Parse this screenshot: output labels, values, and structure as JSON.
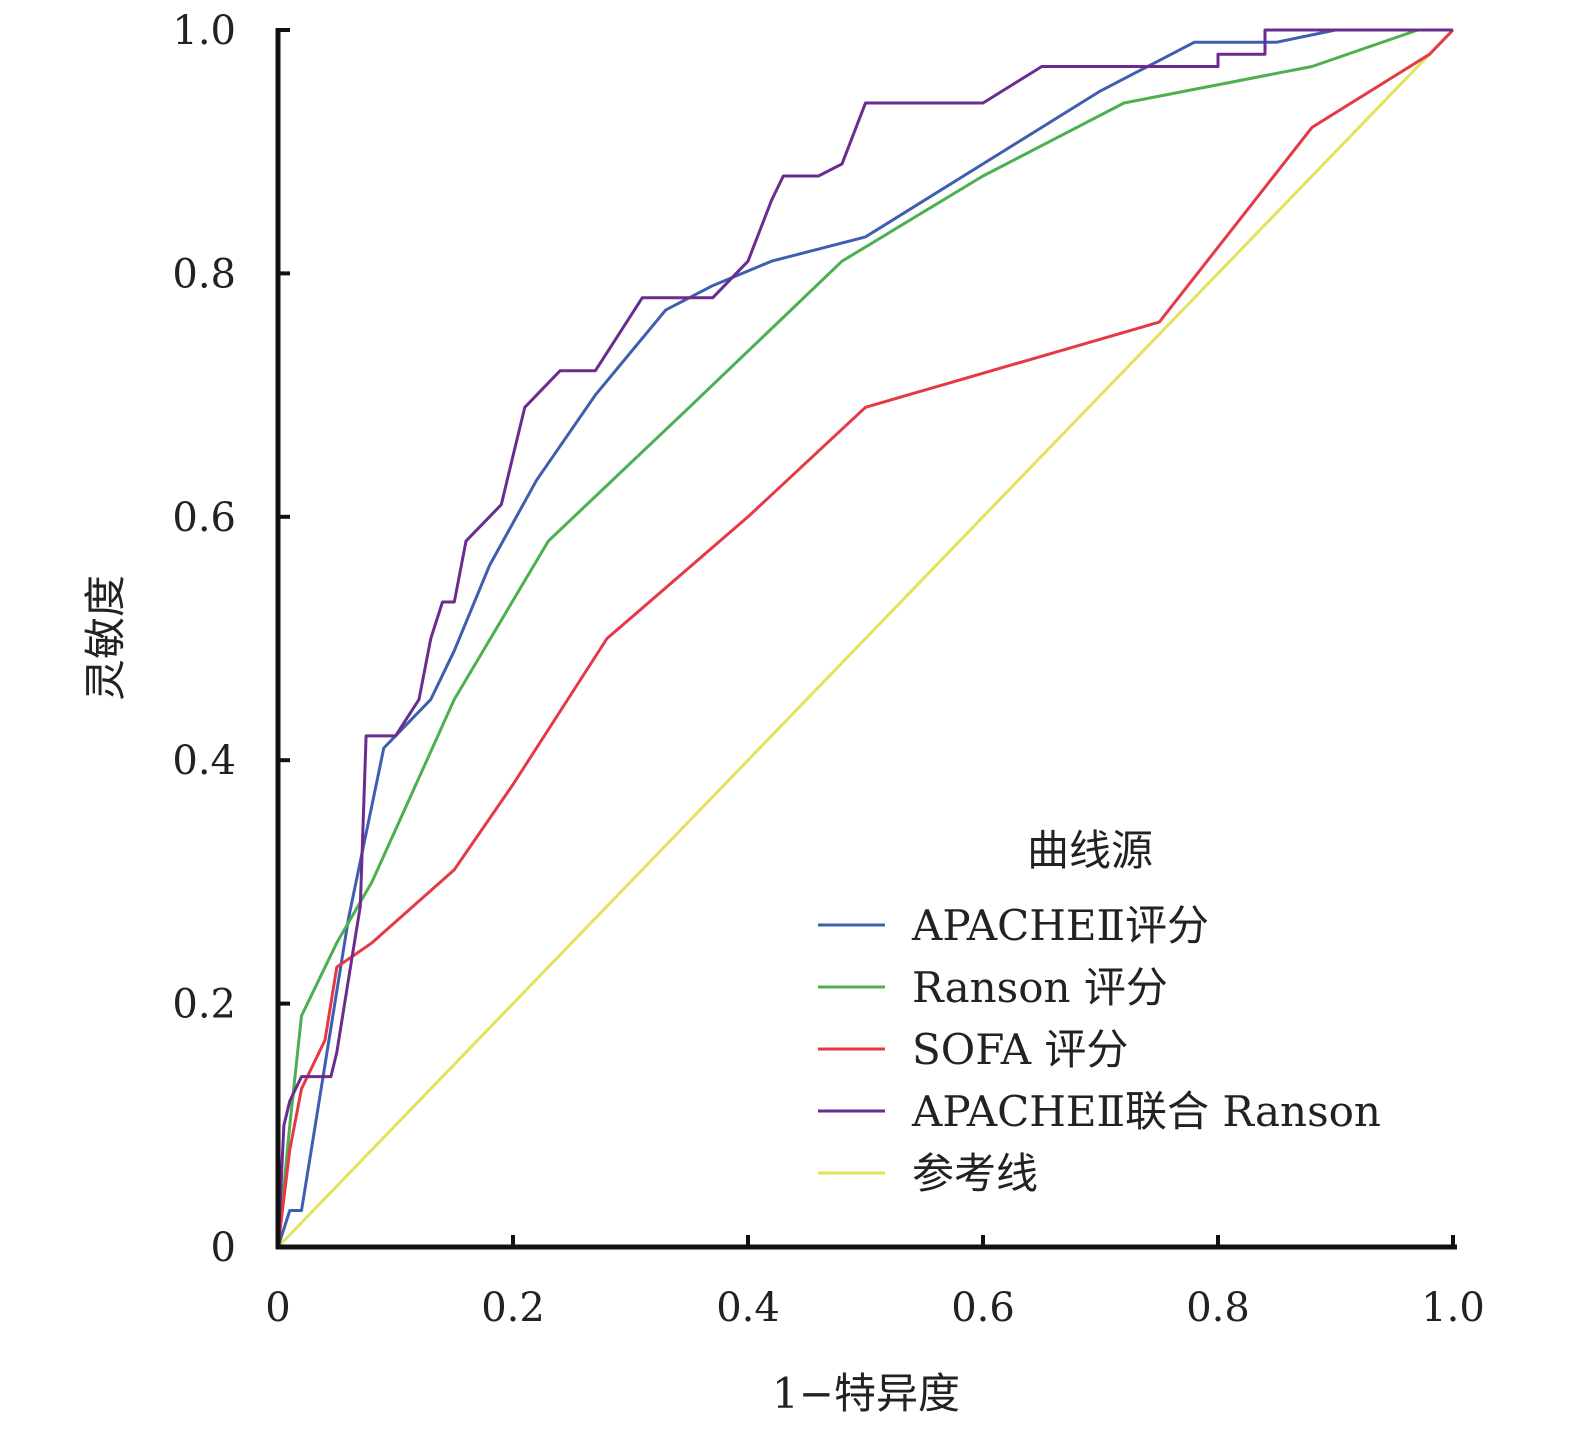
{
  "chart_data": {
    "type": "line",
    "title": "",
    "xlabel": "1−特异度",
    "ylabel": "灵敏度",
    "xlim": [
      0,
      1
    ],
    "ylim": [
      0,
      1
    ],
    "x_ticks": [
      "0",
      "0.2",
      "0.4",
      "0.6",
      "0.8",
      "1.0"
    ],
    "y_ticks": [
      "0",
      "0.2",
      "0.4",
      "0.6",
      "0.8",
      "1.0"
    ],
    "grid": false,
    "legend": {
      "title": "曲线源",
      "placement": "bottom-right"
    },
    "series": [
      {
        "name": "APACHEⅡ评分",
        "color": "#3f5fae",
        "x": [
          0,
          0.01,
          0.02,
          0.03,
          0.06,
          0.09,
          0.1,
          0.13,
          0.15,
          0.18,
          0.22,
          0.27,
          0.33,
          0.37,
          0.42,
          0.5,
          0.6,
          0.7,
          0.78,
          0.85,
          0.9,
          1.0
        ],
        "y": [
          0,
          0.03,
          0.03,
          0.09,
          0.27,
          0.41,
          0.42,
          0.45,
          0.49,
          0.56,
          0.63,
          0.7,
          0.77,
          0.79,
          0.81,
          0.83,
          0.89,
          0.95,
          0.99,
          0.99,
          1.0,
          1.0
        ]
      },
      {
        "name": "Ranson 评分",
        "color": "#4caf50",
        "x": [
          0,
          0.01,
          0.02,
          0.05,
          0.08,
          0.15,
          0.23,
          0.35,
          0.48,
          0.6,
          0.72,
          0.88,
          0.97,
          1.0
        ],
        "y": [
          0,
          0.1,
          0.19,
          0.25,
          0.3,
          0.45,
          0.58,
          0.69,
          0.81,
          0.88,
          0.94,
          0.97,
          1.0,
          1.0
        ]
      },
      {
        "name": "SOFA 评分",
        "color": "#e53945",
        "x": [
          0,
          0.01,
          0.02,
          0.04,
          0.05,
          0.08,
          0.15,
          0.2,
          0.28,
          0.4,
          0.5,
          0.75,
          0.88,
          0.98,
          1.0
        ],
        "y": [
          0,
          0.08,
          0.13,
          0.17,
          0.23,
          0.25,
          0.31,
          0.38,
          0.5,
          0.6,
          0.69,
          0.76,
          0.92,
          0.98,
          1.0
        ]
      },
      {
        "name": "APACHEⅡ联合 Ranson",
        "color": "#6a2c8e",
        "x": [
          0,
          0.005,
          0.01,
          0.02,
          0.03,
          0.045,
          0.05,
          0.06,
          0.07,
          0.075,
          0.08,
          0.1,
          0.12,
          0.13,
          0.14,
          0.15,
          0.16,
          0.19,
          0.2,
          0.21,
          0.23,
          0.24,
          0.27,
          0.29,
          0.31,
          0.37,
          0.38,
          0.4,
          0.42,
          0.43,
          0.44,
          0.46,
          0.48,
          0.5,
          0.6,
          0.65,
          0.75,
          0.8,
          0.8,
          0.84,
          0.84,
          0.9,
          1.0
        ],
        "y": [
          0,
          0.1,
          0.12,
          0.14,
          0.14,
          0.14,
          0.16,
          0.22,
          0.28,
          0.42,
          0.42,
          0.42,
          0.45,
          0.5,
          0.53,
          0.53,
          0.58,
          0.61,
          0.65,
          0.69,
          0.71,
          0.72,
          0.72,
          0.75,
          0.78,
          0.78,
          0.79,
          0.81,
          0.86,
          0.88,
          0.88,
          0.88,
          0.89,
          0.94,
          0.94,
          0.97,
          0.97,
          0.97,
          0.98,
          0.98,
          1.0,
          1.0,
          1.0
        ]
      },
      {
        "name": "参考线",
        "color": "#e6e15a",
        "x": [
          0,
          1
        ],
        "y": [
          0,
          1
        ]
      }
    ]
  }
}
